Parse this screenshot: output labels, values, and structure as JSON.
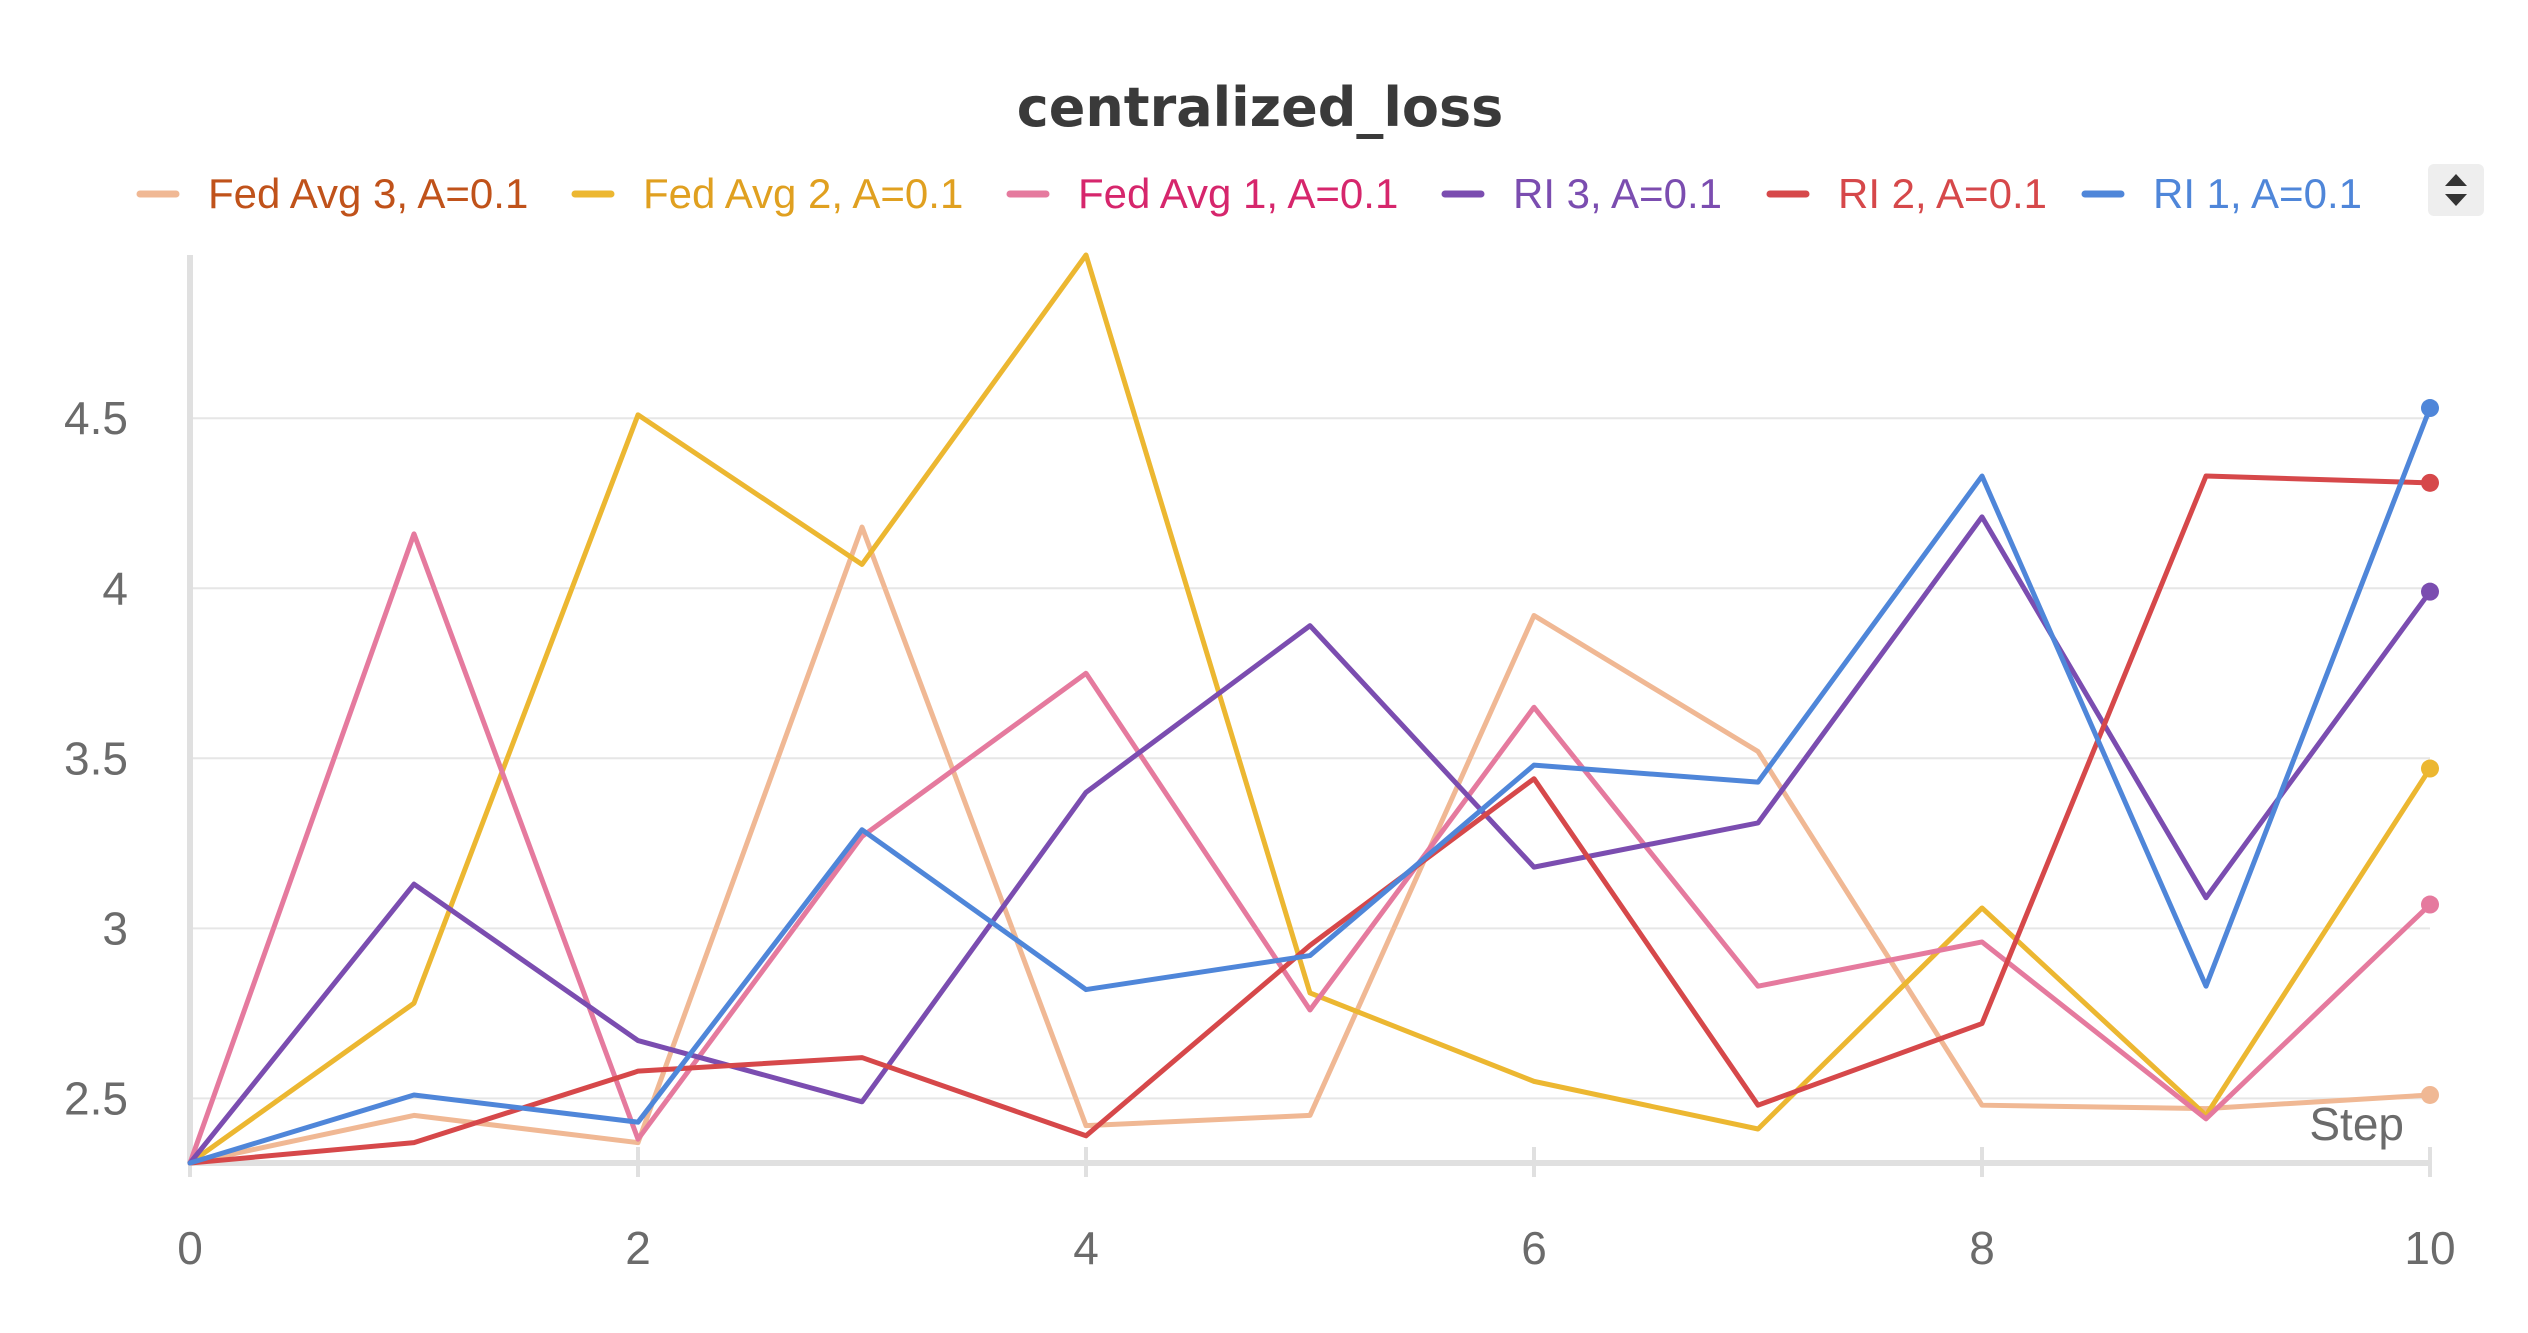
{
  "chart_data": {
    "type": "line",
    "title": "centralized_loss",
    "xlabel": "Step",
    "ylabel": "",
    "x": [
      0,
      1,
      2,
      3,
      4,
      5,
      6,
      7,
      8,
      9,
      10
    ],
    "xlim": [
      0,
      10
    ],
    "ylim": [
      2.31,
      4.98
    ],
    "x_ticks": [
      0,
      2,
      4,
      6,
      8,
      10
    ],
    "x_tick_labels": [
      "0",
      "2",
      "4",
      "6",
      "8",
      "10"
    ],
    "y_ticks": [
      2.5,
      3,
      3.5,
      4,
      4.5
    ],
    "y_tick_labels": [
      "2.5",
      "3",
      "3.5",
      "4",
      "4.5"
    ],
    "grid": "horizontal",
    "legend_position": "top",
    "series": [
      {
        "name": "Fed Avg 3, A=0.1",
        "color": "#f0b894",
        "text_color": "#c0521a",
        "values": [
          2.31,
          2.45,
          2.37,
          4.18,
          2.42,
          2.45,
          3.92,
          3.52,
          2.48,
          2.47,
          2.51
        ]
      },
      {
        "name": "Fed Avg 2, A=0.1",
        "color": "#ecb731",
        "text_color": "#e0a020",
        "values": [
          2.31,
          2.78,
          4.51,
          4.07,
          4.98,
          2.81,
          2.55,
          2.41,
          3.06,
          2.45,
          3.47
        ]
      },
      {
        "name": "Fed Avg 1, A=0.1",
        "color": "#e57a9e",
        "text_color": "#d6266c",
        "values": [
          2.31,
          4.16,
          2.38,
          3.27,
          3.75,
          2.76,
          3.65,
          2.83,
          2.96,
          2.44,
          3.07
        ]
      },
      {
        "name": "RI 3, A=0.1",
        "color": "#7b4db0",
        "text_color": "#7b4db0",
        "values": [
          2.31,
          3.13,
          2.67,
          2.49,
          3.4,
          3.89,
          3.18,
          3.31,
          4.21,
          3.09,
          3.99
        ]
      },
      {
        "name": "RI 2, A=0.1",
        "color": "#d6484a",
        "text_color": "#d6484a",
        "values": [
          2.31,
          2.37,
          2.58,
          2.62,
          2.39,
          2.95,
          3.44,
          2.48,
          2.72,
          4.33,
          4.31
        ]
      },
      {
        "name": "RI 1, A=0.1",
        "color": "#4f86d9",
        "text_color": "#4f86d9",
        "values": [
          2.31,
          2.51,
          2.43,
          3.29,
          2.82,
          2.92,
          3.48,
          3.43,
          4.33,
          2.83,
          4.53
        ]
      }
    ]
  }
}
